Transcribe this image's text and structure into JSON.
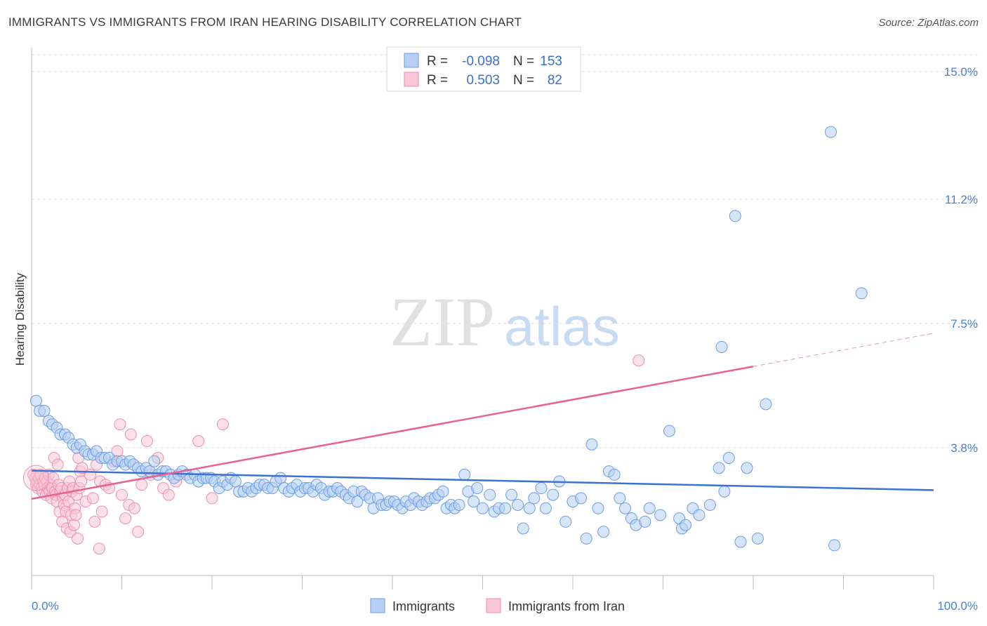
{
  "title": "IMMIGRANTS VS IMMIGRANTS FROM IRAN HEARING DISABILITY CORRELATION CHART",
  "source": "Source: ZipAtlas.com",
  "watermark": {
    "zip": "ZIP",
    "atlas": "atlas"
  },
  "legend": {
    "rows": [
      {
        "r_label": "R =",
        "r_value": "-0.098",
        "n_label": "N =",
        "n_value": "153",
        "color": "#6b9de6",
        "fill": "#b7cff3"
      },
      {
        "r_label": "R =",
        "r_value": "0.503",
        "n_label": "N =",
        "n_value": "82",
        "color": "#ee8fb0",
        "fill": "#f8c6d7"
      }
    ]
  },
  "bottom_legend": [
    {
      "label": "Immigrants",
      "color": "#6b9de6",
      "fill": "#b7cff3"
    },
    {
      "label": "Immigrants from Iran",
      "color": "#ee8fb0",
      "fill": "#f8c6d7"
    }
  ],
  "colors": {
    "blue_line": "#3a73d3",
    "pink_line": "#e6628f",
    "grid": "#dcdcdc",
    "axis": "#bbbbbb"
  },
  "chart_data": {
    "type": "scatter",
    "title": "IMMIGRANTS VS IMMIGRANTS FROM IRAN HEARING DISABILITY CORRELATION CHART",
    "xlabel": "",
    "ylabel": "Hearing Disability",
    "xlim": [
      0,
      100
    ],
    "ylim": [
      0,
      15.5
    ],
    "x_tick_labels": [
      "0.0%",
      "100.0%"
    ],
    "y_ticks": [
      3.8,
      7.5,
      11.2,
      15.0
    ],
    "y_tick_labels": [
      "3.8%",
      "7.5%",
      "11.2%",
      "15.0%"
    ],
    "grid": true,
    "legend_position": "top-center",
    "series": [
      {
        "name": "Immigrants",
        "color": "#6b9de6",
        "trend": {
          "x": [
            0,
            100
          ],
          "y": [
            3.12,
            2.54
          ]
        },
        "points": [
          [
            0.5,
            5.2
          ],
          [
            0.9,
            4.9
          ],
          [
            1.4,
            4.9
          ],
          [
            1.9,
            4.6
          ],
          [
            2.3,
            4.5
          ],
          [
            2.8,
            4.4
          ],
          [
            3.2,
            4.2
          ],
          [
            3.7,
            4.2
          ],
          [
            4.1,
            4.1
          ],
          [
            4.6,
            3.9
          ],
          [
            5.0,
            3.8
          ],
          [
            5.4,
            3.9
          ],
          [
            5.9,
            3.7
          ],
          [
            6.3,
            3.6
          ],
          [
            6.8,
            3.6
          ],
          [
            7.2,
            3.7
          ],
          [
            7.7,
            3.5
          ],
          [
            8.1,
            3.5
          ],
          [
            8.6,
            3.5
          ],
          [
            9.0,
            3.3
          ],
          [
            9.5,
            3.4
          ],
          [
            10.0,
            3.4
          ],
          [
            10.4,
            3.3
          ],
          [
            10.9,
            3.4
          ],
          [
            11.3,
            3.3
          ],
          [
            11.8,
            3.2
          ],
          [
            12.2,
            3.1
          ],
          [
            12.7,
            3.2
          ],
          [
            13.1,
            3.1
          ],
          [
            13.6,
            3.4
          ],
          [
            14.0,
            3.0
          ],
          [
            14.5,
            3.1
          ],
          [
            14.9,
            3.1
          ],
          [
            15.4,
            3.0
          ],
          [
            15.8,
            2.9
          ],
          [
            16.3,
            3.0
          ],
          [
            16.7,
            3.1
          ],
          [
            17.2,
            3.0
          ],
          [
            17.6,
            2.9
          ],
          [
            18.1,
            3.0
          ],
          [
            18.5,
            2.8
          ],
          [
            19.0,
            2.9
          ],
          [
            19.4,
            2.9
          ],
          [
            19.9,
            2.9
          ],
          [
            20.3,
            2.8
          ],
          [
            20.8,
            2.6
          ],
          [
            21.2,
            2.8
          ],
          [
            21.7,
            2.7
          ],
          [
            22.1,
            2.9
          ],
          [
            22.6,
            2.8
          ],
          [
            23.0,
            2.5
          ],
          [
            23.5,
            2.5
          ],
          [
            24.0,
            2.6
          ],
          [
            24.4,
            2.5
          ],
          [
            24.9,
            2.6
          ],
          [
            25.3,
            2.7
          ],
          [
            25.8,
            2.7
          ],
          [
            26.2,
            2.6
          ],
          [
            26.7,
            2.6
          ],
          [
            27.1,
            2.8
          ],
          [
            27.6,
            2.9
          ],
          [
            28.0,
            2.6
          ],
          [
            28.5,
            2.5
          ],
          [
            28.9,
            2.6
          ],
          [
            29.4,
            2.7
          ],
          [
            29.8,
            2.5
          ],
          [
            30.3,
            2.6
          ],
          [
            30.7,
            2.6
          ],
          [
            31.2,
            2.5
          ],
          [
            31.6,
            2.7
          ],
          [
            32.1,
            2.6
          ],
          [
            32.5,
            2.4
          ],
          [
            33.0,
            2.5
          ],
          [
            33.4,
            2.5
          ],
          [
            33.9,
            2.6
          ],
          [
            34.3,
            2.5
          ],
          [
            34.8,
            2.4
          ],
          [
            35.2,
            2.3
          ],
          [
            35.7,
            2.5
          ],
          [
            36.1,
            2.2
          ],
          [
            36.6,
            2.5
          ],
          [
            37.0,
            2.4
          ],
          [
            37.5,
            2.3
          ],
          [
            37.9,
            2.0
          ],
          [
            38.4,
            2.3
          ],
          [
            38.8,
            2.1
          ],
          [
            39.3,
            2.1
          ],
          [
            39.7,
            2.2
          ],
          [
            40.2,
            2.2
          ],
          [
            40.6,
            2.1
          ],
          [
            41.1,
            2.0
          ],
          [
            41.5,
            2.2
          ],
          [
            42.0,
            2.1
          ],
          [
            42.4,
            2.3
          ],
          [
            42.9,
            2.2
          ],
          [
            43.3,
            2.1
          ],
          [
            43.8,
            2.2
          ],
          [
            44.2,
            2.3
          ],
          [
            44.7,
            2.3
          ],
          [
            45.1,
            2.4
          ],
          [
            45.6,
            2.5
          ],
          [
            46.0,
            2.0
          ],
          [
            46.5,
            2.1
          ],
          [
            46.9,
            2.0
          ],
          [
            47.4,
            2.1
          ],
          [
            48.0,
            3.0
          ],
          [
            48.4,
            2.5
          ],
          [
            49.0,
            2.2
          ],
          [
            49.4,
            2.6
          ],
          [
            50.0,
            2.0
          ],
          [
            50.8,
            2.4
          ],
          [
            51.3,
            1.9
          ],
          [
            51.8,
            2.0
          ],
          [
            52.5,
            2.0
          ],
          [
            53.2,
            2.4
          ],
          [
            53.9,
            2.1
          ],
          [
            54.5,
            1.4
          ],
          [
            55.2,
            2.0
          ],
          [
            55.7,
            2.3
          ],
          [
            56.5,
            2.6
          ],
          [
            57.0,
            2.0
          ],
          [
            57.8,
            2.4
          ],
          [
            58.5,
            2.8
          ],
          [
            59.2,
            1.6
          ],
          [
            60.0,
            2.2
          ],
          [
            60.9,
            2.3
          ],
          [
            61.5,
            1.1
          ],
          [
            62.1,
            3.9
          ],
          [
            62.8,
            2.0
          ],
          [
            63.4,
            1.3
          ],
          [
            64.0,
            3.1
          ],
          [
            64.6,
            3.0
          ],
          [
            65.2,
            2.3
          ],
          [
            65.8,
            2.0
          ],
          [
            66.5,
            1.7
          ],
          [
            67.0,
            1.5
          ],
          [
            68.0,
            1.6
          ],
          [
            68.5,
            2.0
          ],
          [
            69.7,
            1.8
          ],
          [
            70.7,
            4.3
          ],
          [
            71.8,
            1.7
          ],
          [
            72.1,
            1.4
          ],
          [
            72.5,
            1.5
          ],
          [
            73.3,
            2.0
          ],
          [
            74.0,
            1.8
          ],
          [
            75.2,
            2.1
          ],
          [
            76.2,
            3.2
          ],
          [
            76.5,
            6.8
          ],
          [
            76.8,
            2.5
          ],
          [
            77.3,
            3.5
          ],
          [
            78.0,
            10.7
          ],
          [
            78.6,
            1.0
          ],
          [
            79.3,
            3.2
          ],
          [
            80.5,
            1.1
          ],
          [
            81.4,
            5.1
          ],
          [
            88.6,
            13.2
          ],
          [
            89.0,
            0.9
          ],
          [
            92.0,
            8.4
          ]
        ]
      },
      {
        "name": "Immigrants from Iran",
        "color": "#ee8fb0",
        "trend": {
          "x": [
            0,
            80
          ],
          "y": [
            2.28,
            6.22
          ],
          "dashed_to": {
            "x": 100,
            "y": 7.21
          }
        },
        "points": [
          [
            0.2,
            3.0
          ],
          [
            0.4,
            2.9
          ],
          [
            0.5,
            2.7
          ],
          [
            0.6,
            2.8
          ],
          [
            0.7,
            2.6
          ],
          [
            0.8,
            2.9
          ],
          [
            0.9,
            2.7
          ],
          [
            1.0,
            3.0
          ],
          [
            1.1,
            2.6
          ],
          [
            1.2,
            2.5
          ],
          [
            1.3,
            2.8
          ],
          [
            1.4,
            2.7
          ],
          [
            1.5,
            2.9
          ],
          [
            1.6,
            2.4
          ],
          [
            1.7,
            2.8
          ],
          [
            1.8,
            2.6
          ],
          [
            1.9,
            3.0
          ],
          [
            2.0,
            2.5
          ],
          [
            2.1,
            2.7
          ],
          [
            2.2,
            2.3
          ],
          [
            2.3,
            2.6
          ],
          [
            2.4,
            2.9
          ],
          [
            2.5,
            3.5
          ],
          [
            2.6,
            2.5
          ],
          [
            2.7,
            2.4
          ],
          [
            2.8,
            2.2
          ],
          [
            2.9,
            3.3
          ],
          [
            3.0,
            2.7
          ],
          [
            3.1,
            1.9
          ],
          [
            3.2,
            2.5
          ],
          [
            3.3,
            2.6
          ],
          [
            3.4,
            1.6
          ],
          [
            3.5,
            2.3
          ],
          [
            3.6,
            2.1
          ],
          [
            3.7,
            2.4
          ],
          [
            3.8,
            1.9
          ],
          [
            3.9,
            1.4
          ],
          [
            4.0,
            2.6
          ],
          [
            4.1,
            2.2
          ],
          [
            4.2,
            2.8
          ],
          [
            4.3,
            1.3
          ],
          [
            4.4,
            1.8
          ],
          [
            4.5,
            2.5
          ],
          [
            4.6,
            2.6
          ],
          [
            4.7,
            1.5
          ],
          [
            4.8,
            2.0
          ],
          [
            4.9,
            1.8
          ],
          [
            5.0,
            2.4
          ],
          [
            5.1,
            1.1
          ],
          [
            5.2,
            3.5
          ],
          [
            5.3,
            2.6
          ],
          [
            5.4,
            3.1
          ],
          [
            5.5,
            2.8
          ],
          [
            5.6,
            3.2
          ],
          [
            6.0,
            2.2
          ],
          [
            6.5,
            3.0
          ],
          [
            6.8,
            2.3
          ],
          [
            7.0,
            1.6
          ],
          [
            7.2,
            3.3
          ],
          [
            7.5,
            0.8
          ],
          [
            7.6,
            2.8
          ],
          [
            7.8,
            1.9
          ],
          [
            8.2,
            2.7
          ],
          [
            8.6,
            2.6
          ],
          [
            9.1,
            3.4
          ],
          [
            9.5,
            3.7
          ],
          [
            9.8,
            4.5
          ],
          [
            10.0,
            2.4
          ],
          [
            10.4,
            1.7
          ],
          [
            10.8,
            2.1
          ],
          [
            11.0,
            4.2
          ],
          [
            11.4,
            2.0
          ],
          [
            11.8,
            1.3
          ],
          [
            12.2,
            2.7
          ],
          [
            12.8,
            4.0
          ],
          [
            13.2,
            3.0
          ],
          [
            14.0,
            3.5
          ],
          [
            14.6,
            2.6
          ],
          [
            15.2,
            2.4
          ],
          [
            16.0,
            2.8
          ],
          [
            18.5,
            4.0
          ],
          [
            20.0,
            2.3
          ],
          [
            21.2,
            4.5
          ],
          [
            67.3,
            6.4
          ]
        ]
      }
    ]
  }
}
